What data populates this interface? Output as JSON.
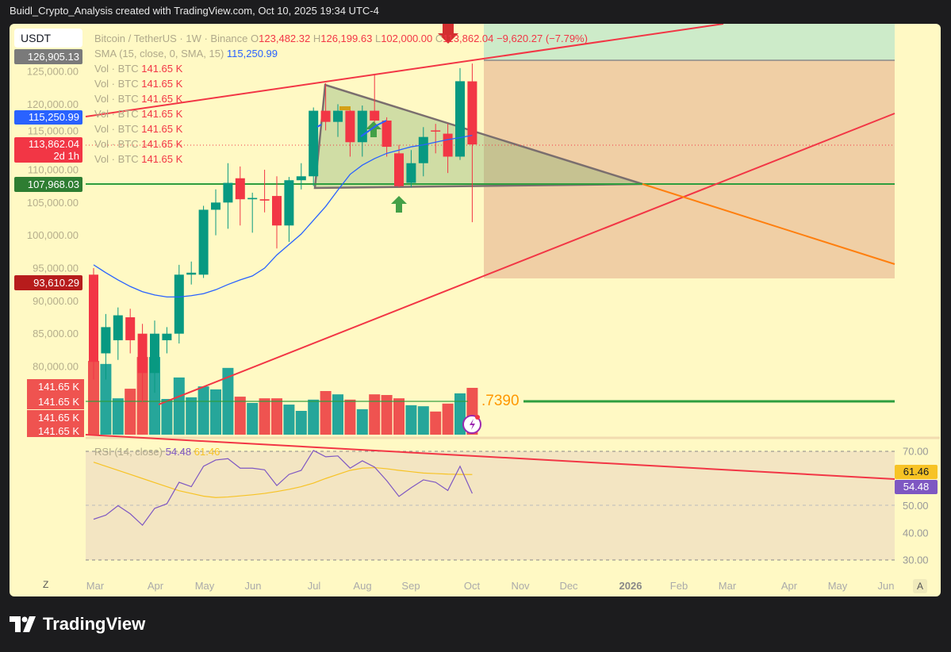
{
  "title": "Buidl_Crypto_Analysis created with TradingView.com, Oct 10, 2025 19:34 UTC-4",
  "legend": {
    "symbol": "Bitcoin / TetherUS · 1W · Binance",
    "open_label": "O",
    "open": "123,482.32",
    "high_label": "H",
    "high": "126,199.63",
    "low_label": "L",
    "low": "102,000.00",
    "close_label": "C",
    "close": "113,862.04",
    "change": "−9,620.27 (−7.79%)",
    "sma_label": "SMA (15, close, 0, SMA, 15)",
    "sma_value": "115,250.99",
    "vol_label": "Vol · BTC",
    "vol_value": "141.65 K",
    "vol_rows": 7,
    "rsi_label": "RSI (14, close)",
    "rsi_value": "54.48",
    "rsi_ma_value": "61.46"
  },
  "currency": "USDT",
  "price_badges": {
    "high_marker": "126,905.13",
    "sma": "115,250.99",
    "last": "113,862.04",
    "countdown": "2d 1h",
    "support": "107,968.03",
    "low_marker": "93,610.29",
    "volume": "141.65 K"
  },
  "fib_label": ".7390",
  "colors": {
    "up": "#089981",
    "down": "#f23645",
    "vol_up": "#26a69a",
    "vol_down": "#ef5350",
    "sma": "#2962ff",
    "rsi": "#7e57c2",
    "rsi_ma": "#f7c325",
    "background": "#fff9c4"
  },
  "chart_data": {
    "type": "candlestick",
    "price_ticks": [
      "125,000.00",
      "120,000.00",
      "115,000.00",
      "110,000.00",
      "105,000.00",
      "100,000.00",
      "95,000.00",
      "90,000.00",
      "85,000.00",
      "80,000.00"
    ],
    "x_ticks": [
      "Mar",
      "Apr",
      "May",
      "Jun",
      "Jul",
      "Aug",
      "Sep",
      "Oct",
      "Nov",
      "Dec",
      "2026",
      "Feb",
      "Mar",
      "Apr",
      "May",
      "Jun"
    ],
    "rsi_ticks": [
      "70.00",
      "50.00",
      "40.00",
      "30.00"
    ],
    "candles": [
      [
        94000,
        95000,
        78000,
        80700
      ],
      [
        82000,
        88000,
        78000,
        86000
      ],
      [
        84000,
        89000,
        81000,
        87800
      ],
      [
        87500,
        88800,
        82000,
        84000
      ],
      [
        85000,
        86500,
        74500,
        79000
      ],
      [
        79000,
        87000,
        76000,
        85000
      ],
      [
        84000,
        86000,
        82000,
        85000
      ],
      [
        85000,
        95500,
        83500,
        94000
      ],
      [
        94000,
        96000,
        92500,
        94300
      ],
      [
        94000,
        104500,
        93500,
        103900
      ],
      [
        103900,
        107000,
        100000,
        105000
      ],
      [
        105000,
        111000,
        101000,
        108000
      ],
      [
        108700,
        110500,
        101500,
        105500
      ],
      [
        105500,
        106500,
        100400,
        105700
      ],
      [
        105500,
        110000,
        103500,
        105300
      ],
      [
        106000,
        109000,
        98000,
        101500
      ],
      [
        101500,
        108900,
        99000,
        108400
      ],
      [
        108400,
        111000,
        107000,
        109000
      ],
      [
        109000,
        119500,
        107500,
        119000
      ],
      [
        119000,
        123200,
        116000,
        117300
      ],
      [
        117300,
        120000,
        115000,
        119000
      ],
      [
        119000,
        119500,
        112000,
        114200
      ],
      [
        114200,
        119800,
        112000,
        119000
      ],
      [
        119000,
        124500,
        115000,
        117500
      ],
      [
        117500,
        118000,
        112000,
        113500
      ],
      [
        112500,
        113800,
        107300,
        107500
      ],
      [
        108000,
        113000,
        107300,
        111000
      ],
      [
        111000,
        116500,
        109000,
        115000
      ],
      [
        116000,
        117000,
        112500,
        115900
      ],
      [
        115500,
        117000,
        109500,
        112000
      ],
      [
        112000,
        125500,
        111500,
        123500
      ],
      [
        123482.32,
        126199.63,
        102000,
        113862.04
      ]
    ],
    "volume_k": [
      223,
      214,
      110,
      139,
      235,
      235,
      108,
      173,
      113,
      146,
      137,
      202,
      115,
      96,
      110,
      110,
      91,
      72,
      106,
      132,
      122,
      106,
      77,
      122,
      120,
      110,
      89,
      86,
      70,
      94,
      125,
      141.65
    ],
    "sma": [
      95500,
      94300,
      93200,
      92200,
      91400,
      90900,
      90600,
      90600,
      90800,
      91100,
      91700,
      92500,
      93200,
      93800,
      95000,
      97000,
      98600,
      100200,
      102300,
      104400,
      106900,
      109300,
      110700,
      111700,
      112500,
      113000,
      113500,
      113800,
      114200,
      114600,
      114900,
      115250.99
    ],
    "rsi": [
      45,
      46.5,
      50,
      47,
      42.8,
      49,
      50.7,
      58.6,
      57,
      64.5,
      66.8,
      67.3,
      63.8,
      63.8,
      63.2,
      57.4,
      61.5,
      63,
      70.3,
      68,
      68.3,
      63.8,
      66.5,
      64.2,
      59.2,
      53.4,
      56.6,
      59.5,
      58.6,
      55.6,
      64.5,
      54.48
    ],
    "rsi_ma": [
      66,
      64.5,
      63,
      61.5,
      60,
      58.5,
      57,
      55.5,
      54.5,
      53.5,
      53,
      53.2,
      53.6,
      54,
      54.5,
      55.2,
      56,
      57,
      58.3,
      60,
      61.5,
      63,
      63.8,
      64,
      63.6,
      63,
      62.5,
      62,
      61.8,
      61.6,
      61.5,
      61.46
    ]
  }
}
